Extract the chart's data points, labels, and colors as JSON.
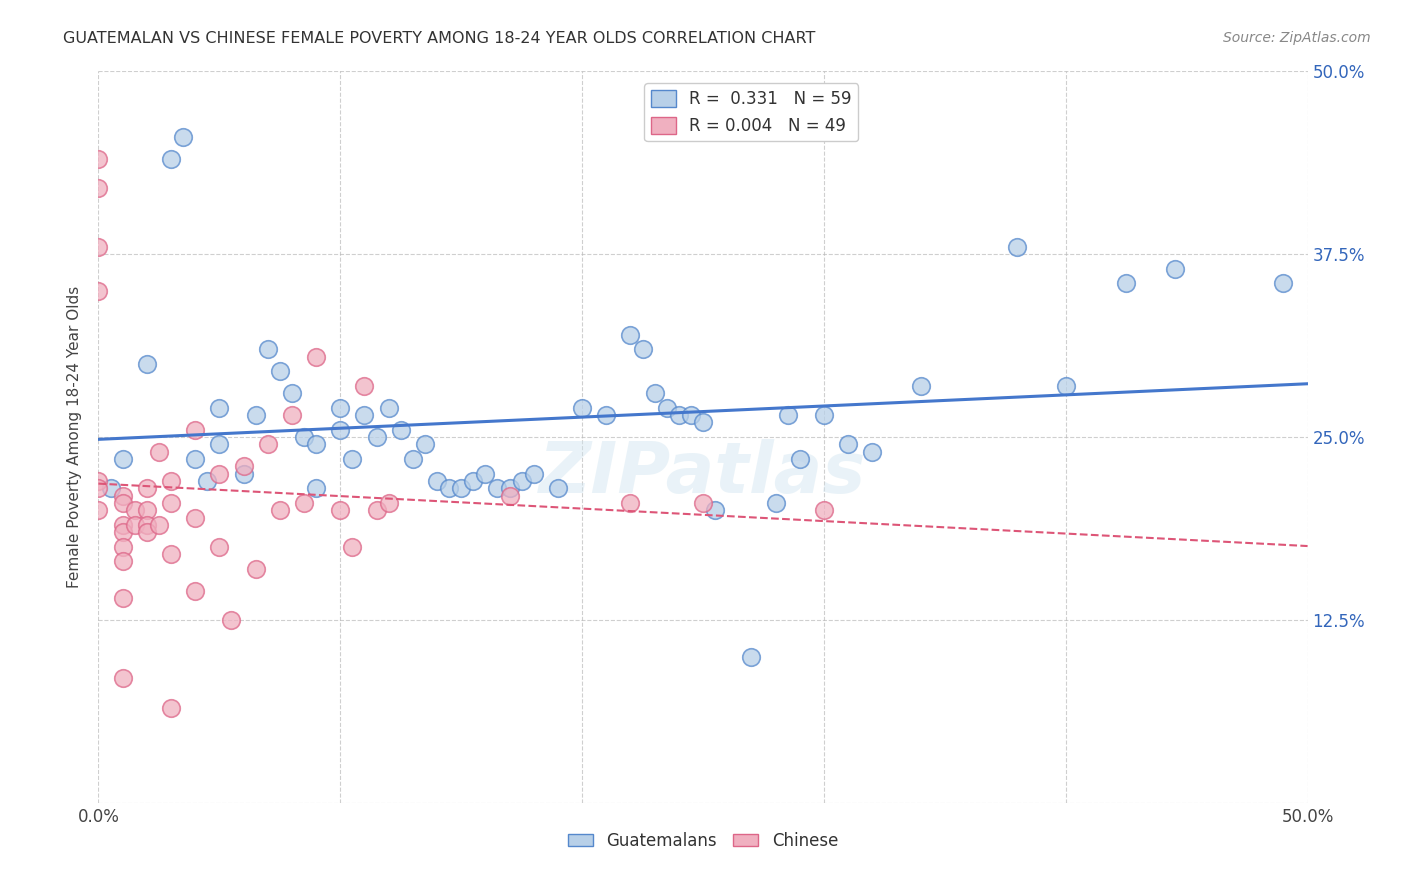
{
  "title": "GUATEMALAN VS CHINESE FEMALE POVERTY AMONG 18-24 YEAR OLDS CORRELATION CHART",
  "source": "Source: ZipAtlas.com",
  "ylabel": "Female Poverty Among 18-24 Year Olds",
  "xlim": [
    0.0,
    0.5
  ],
  "ylim": [
    0.0,
    0.5
  ],
  "xtick_vals": [
    0.0,
    0.1,
    0.2,
    0.3,
    0.4,
    0.5
  ],
  "ytick_vals": [
    0.0,
    0.125,
    0.25,
    0.375,
    0.5
  ],
  "xticklabels": [
    "0.0%",
    "",
    "",
    "",
    "",
    "50.0%"
  ],
  "yticklabels_right": [
    "",
    "12.5%",
    "25.0%",
    "37.5%",
    "50.0%"
  ],
  "background_color": "#ffffff",
  "grid_color": "#bbbbbb",
  "watermark": "ZIPatlas",
  "blue_fill": "#b8d0e8",
  "blue_edge": "#5588cc",
  "pink_fill": "#f0b0c0",
  "pink_edge": "#dd6688",
  "blue_line_color": "#4477cc",
  "pink_line_color": "#dd5577",
  "legend_blue_label": "R =  0.331   N = 59",
  "legend_pink_label": "R = 0.004   N = 49",
  "tick_label_color": "#3366bb",
  "guatemalan_x": [
    0.005,
    0.01,
    0.02,
    0.03,
    0.035,
    0.04,
    0.045,
    0.05,
    0.05,
    0.06,
    0.065,
    0.07,
    0.075,
    0.08,
    0.085,
    0.09,
    0.09,
    0.1,
    0.1,
    0.105,
    0.11,
    0.115,
    0.12,
    0.125,
    0.13,
    0.135,
    0.14,
    0.145,
    0.15,
    0.155,
    0.16,
    0.165,
    0.17,
    0.175,
    0.18,
    0.19,
    0.2,
    0.21,
    0.22,
    0.225,
    0.23,
    0.235,
    0.24,
    0.245,
    0.25,
    0.255,
    0.27,
    0.28,
    0.285,
    0.29,
    0.3,
    0.31,
    0.32,
    0.34,
    0.38,
    0.4,
    0.425,
    0.445,
    0.49
  ],
  "guatemalan_y": [
    0.215,
    0.235,
    0.3,
    0.44,
    0.455,
    0.235,
    0.22,
    0.27,
    0.245,
    0.225,
    0.265,
    0.31,
    0.295,
    0.28,
    0.25,
    0.245,
    0.215,
    0.27,
    0.255,
    0.235,
    0.265,
    0.25,
    0.27,
    0.255,
    0.235,
    0.245,
    0.22,
    0.215,
    0.215,
    0.22,
    0.225,
    0.215,
    0.215,
    0.22,
    0.225,
    0.215,
    0.27,
    0.265,
    0.32,
    0.31,
    0.28,
    0.27,
    0.265,
    0.265,
    0.26,
    0.2,
    0.1,
    0.205,
    0.265,
    0.235,
    0.265,
    0.245,
    0.24,
    0.285,
    0.38,
    0.285,
    0.355,
    0.365,
    0.355
  ],
  "chinese_x": [
    0.0,
    0.0,
    0.0,
    0.0,
    0.0,
    0.0,
    0.0,
    0.01,
    0.01,
    0.01,
    0.01,
    0.01,
    0.01,
    0.01,
    0.01,
    0.015,
    0.015,
    0.02,
    0.02,
    0.02,
    0.02,
    0.025,
    0.025,
    0.03,
    0.03,
    0.03,
    0.03,
    0.04,
    0.04,
    0.04,
    0.05,
    0.05,
    0.055,
    0.06,
    0.065,
    0.07,
    0.075,
    0.08,
    0.085,
    0.09,
    0.1,
    0.105,
    0.11,
    0.115,
    0.12,
    0.17,
    0.22,
    0.25,
    0.3
  ],
  "chinese_y": [
    0.44,
    0.42,
    0.38,
    0.35,
    0.22,
    0.215,
    0.2,
    0.21,
    0.205,
    0.19,
    0.185,
    0.175,
    0.165,
    0.14,
    0.085,
    0.2,
    0.19,
    0.215,
    0.2,
    0.19,
    0.185,
    0.24,
    0.19,
    0.22,
    0.205,
    0.17,
    0.065,
    0.255,
    0.195,
    0.145,
    0.225,
    0.175,
    0.125,
    0.23,
    0.16,
    0.245,
    0.2,
    0.265,
    0.205,
    0.305,
    0.2,
    0.175,
    0.285,
    0.2,
    0.205,
    0.21,
    0.205,
    0.205,
    0.2
  ]
}
